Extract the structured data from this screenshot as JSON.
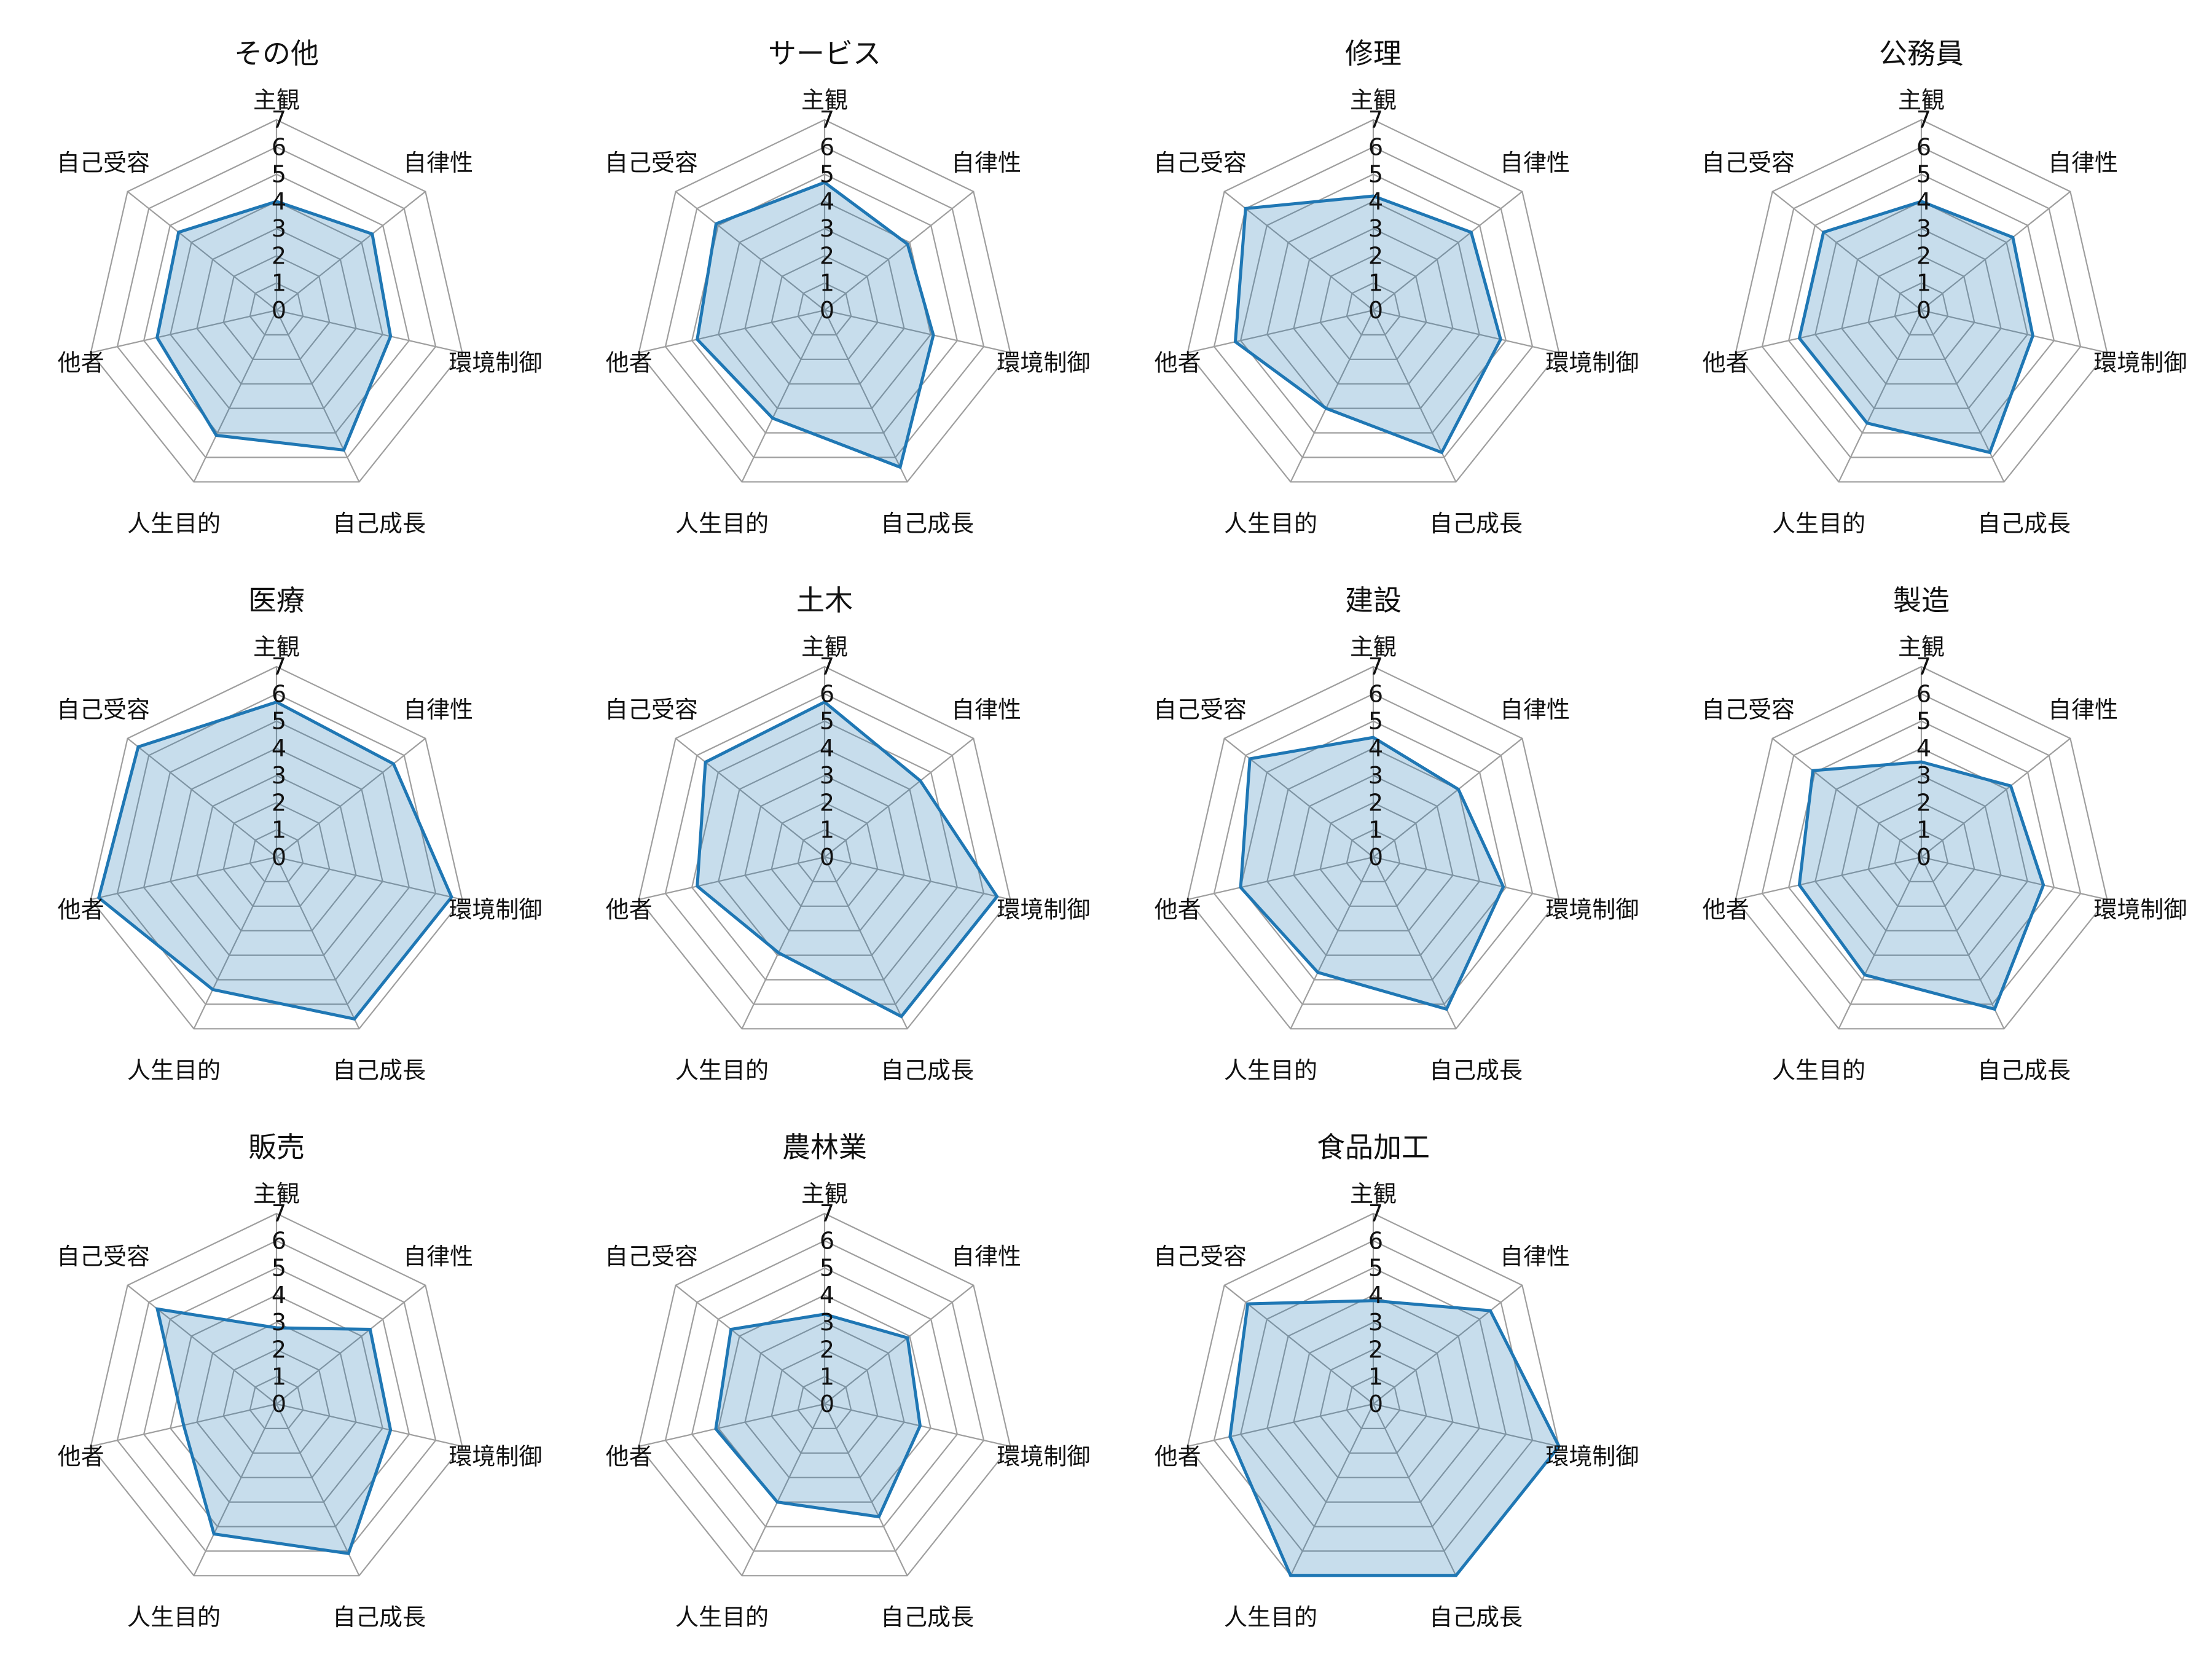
{
  "chart_data": {
    "type": "radar",
    "axes": [
      "主観",
      "自律性",
      "環境制御",
      "自己成長",
      "人生目的",
      "他者",
      "自己受容"
    ],
    "rmax": 7,
    "ticks": [
      "0",
      "1",
      "2",
      "3",
      "4",
      "5",
      "6",
      "7"
    ],
    "grid": true,
    "series_color": "#1f77b4",
    "fill_color": "#1f77b4",
    "fill_opacity": 0.25,
    "charts": [
      {
        "title": "その他",
        "values": [
          4.0,
          4.5,
          4.3,
          5.7,
          5.1,
          4.5,
          4.6
        ]
      },
      {
        "title": "サービス",
        "values": [
          4.7,
          3.9,
          4.1,
          6.4,
          4.4,
          4.8,
          5.1
        ]
      },
      {
        "title": "修理",
        "values": [
          4.2,
          4.6,
          4.8,
          5.8,
          4.0,
          5.2,
          6.0
        ]
      },
      {
        "title": "公務員",
        "values": [
          4.0,
          4.3,
          4.2,
          5.8,
          4.6,
          4.6,
          4.6
        ]
      },
      {
        "title": "医療",
        "values": [
          5.7,
          5.5,
          6.6,
          6.6,
          5.4,
          6.7,
          6.5
        ]
      },
      {
        "title": "土木",
        "values": [
          5.7,
          4.5,
          6.5,
          6.5,
          3.9,
          4.8,
          5.6
        ]
      },
      {
        "title": "建設",
        "values": [
          4.4,
          4.0,
          4.9,
          6.2,
          4.7,
          5.0,
          5.8
        ]
      },
      {
        "title": "製造",
        "values": [
          3.5,
          4.2,
          4.6,
          6.2,
          4.8,
          4.6,
          5.1
        ]
      },
      {
        "title": "販売",
        "values": [
          2.8,
          4.4,
          4.3,
          6.1,
          5.3,
          3.5,
          5.6
        ]
      },
      {
        "title": "農林業",
        "values": [
          3.3,
          3.9,
          3.6,
          4.6,
          4.0,
          4.1,
          4.4
        ]
      },
      {
        "title": "食品加工",
        "values": [
          3.8,
          5.5,
          7.0,
          7.0,
          7.0,
          5.4,
          5.9
        ]
      }
    ]
  }
}
